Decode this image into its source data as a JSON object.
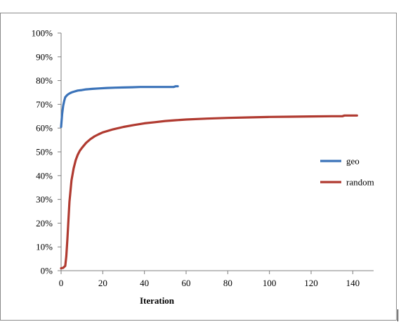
{
  "chart_data": {
    "type": "line",
    "title": "",
    "xlabel": "Iteration",
    "ylabel": "",
    "xlim": [
      0,
      150
    ],
    "ylim": [
      0,
      100
    ],
    "x_ticks": [
      0,
      20,
      40,
      60,
      80,
      100,
      120,
      140
    ],
    "y_ticks": [
      0,
      10,
      20,
      30,
      40,
      50,
      60,
      70,
      80,
      90,
      100
    ],
    "y_tick_format": "percent",
    "grid": false,
    "legend": "right",
    "series": [
      {
        "name": "geo",
        "color": "#3b73b9",
        "x": [
          0,
          0.5,
          1,
          1.5,
          2,
          3,
          4,
          5,
          6,
          8,
          10,
          12,
          15,
          18,
          22,
          26,
          30,
          34,
          38,
          42,
          46,
          50,
          54,
          55,
          56
        ],
        "y": [
          60.5,
          66,
          69.5,
          71.5,
          73,
          74,
          74.6,
          75,
          75.3,
          75.8,
          76,
          76.3,
          76.5,
          76.7,
          76.9,
          77,
          77.1,
          77.2,
          77.3,
          77.3,
          77.3,
          77.3,
          77.3,
          77.6,
          77.6
        ]
      },
      {
        "name": "random",
        "color": "#b03a30",
        "x": [
          0,
          1,
          2,
          2.5,
          3,
          3.5,
          4,
          5,
          6,
          7,
          8,
          9,
          10,
          12,
          14,
          16,
          18,
          20,
          25,
          30,
          35,
          40,
          45,
          50,
          55,
          60,
          70,
          80,
          90,
          100,
          110,
          120,
          130,
          135,
          136,
          142
        ],
        "y": [
          1,
          1.2,
          2,
          6,
          13,
          21,
          29,
          38,
          43,
          46.5,
          48.8,
          50.5,
          51.7,
          53.8,
          55.3,
          56.5,
          57.4,
          58.2,
          59.5,
          60.5,
          61.3,
          62,
          62.5,
          63,
          63.3,
          63.6,
          64,
          64.3,
          64.5,
          64.7,
          64.8,
          64.9,
          65,
          65,
          65.3,
          65.3
        ]
      }
    ]
  }
}
